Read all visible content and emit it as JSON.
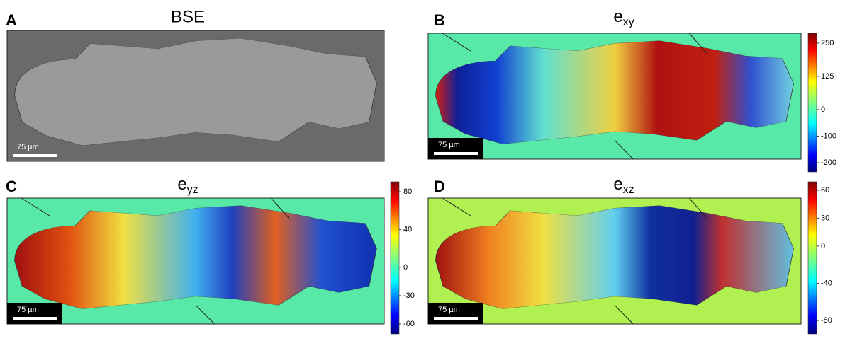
{
  "panels": [
    {
      "label": "A",
      "title": "BSE",
      "scale_bar": "75 µm"
    },
    {
      "label": "B",
      "title": {
        "base": "e",
        "sub": "xy"
      },
      "scale_bar": "75 µm",
      "colorbar_ticks": [
        250,
        125,
        0,
        -100,
        -200
      ]
    },
    {
      "label": "C",
      "title": {
        "base": "e",
        "sub": "yz"
      },
      "scale_bar": "75 µm",
      "colorbar_ticks": [
        80,
        40,
        0,
        -30,
        -60
      ]
    },
    {
      "label": "D",
      "title": {
        "base": "e",
        "sub": "xz"
      },
      "scale_bar": "75 µm",
      "colorbar_ticks": [
        60,
        30,
        0,
        -40,
        -80
      ]
    }
  ]
}
